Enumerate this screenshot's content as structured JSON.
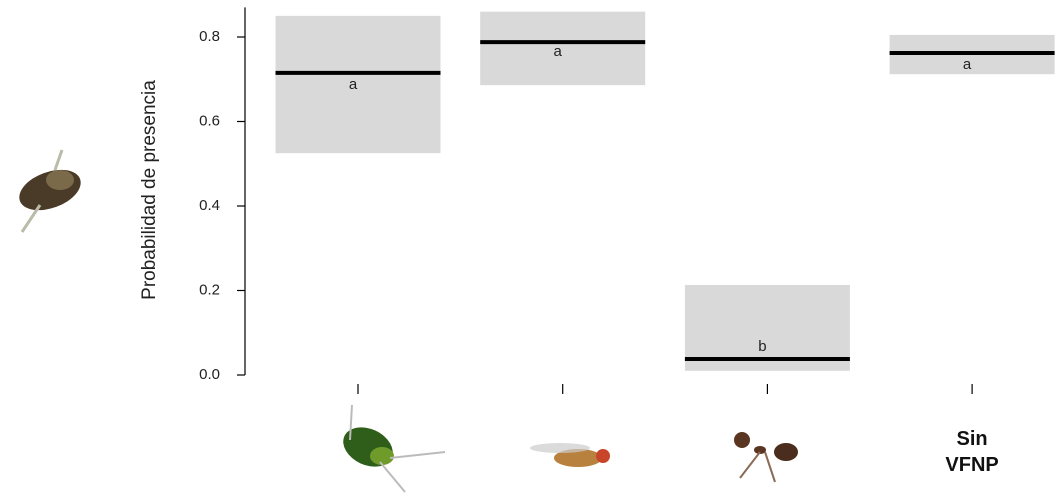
{
  "chart_data": {
    "type": "crossbar",
    "ylabel": "Probabilidad de presencia",
    "categories": [
      null,
      null,
      null,
      "Sin VFNP"
    ],
    "values": [
      0.715,
      0.788,
      0.038,
      0.762
    ],
    "lower": [
      0.525,
      0.686,
      0.01,
      0.712
    ],
    "upper": [
      0.85,
      0.86,
      0.213,
      0.805
    ],
    "letters": [
      "a",
      "a",
      "b",
      "a"
    ],
    "box_color": "#d9d9d9",
    "line_color": "#000000",
    "ylim": [
      0,
      0.87
    ],
    "yticks": [
      {
        "value": 0,
        "label": "0.0"
      },
      0.2,
      0.4,
      0.6,
      0.8
    ]
  }
}
